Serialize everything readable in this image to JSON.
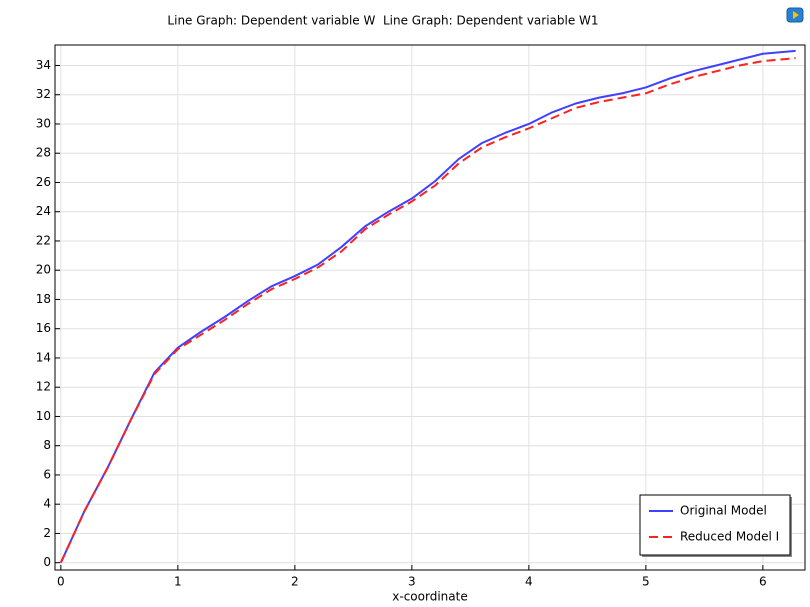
{
  "chart_data": {
    "type": "line",
    "title": "Line Graph: Dependent variable W  Line Graph: Dependent variable W1",
    "x_label": "x-coordinate",
    "x": [
      0,
      0.2,
      0.4,
      0.6,
      0.8,
      1.0,
      1.2,
      1.4,
      1.6,
      1.8,
      2.0,
      2.2,
      2.4,
      2.6,
      2.8,
      3.0,
      3.2,
      3.4,
      3.6,
      3.8,
      4.0,
      4.2,
      4.4,
      4.6,
      4.8,
      5.0,
      5.2,
      5.4,
      5.6,
      5.8,
      6.0,
      6.28
    ],
    "series": [
      {
        "name": "Original Model",
        "color": "#4040ff",
        "dash": false,
        "values": [
          0,
          3.5,
          6.5,
          9.8,
          13.0,
          14.7,
          15.8,
          16.8,
          17.9,
          18.9,
          19.6,
          20.4,
          21.6,
          23.0,
          24.0,
          24.9,
          26.1,
          27.6,
          28.7,
          29.4,
          30.0,
          30.8,
          31.4,
          31.8,
          32.1,
          32.5,
          33.1,
          33.6,
          34.0,
          34.4,
          34.8,
          35.0
        ]
      },
      {
        "name": "Reduced Model I",
        "color": "#ff2020",
        "dash": true,
        "values": [
          0,
          3.5,
          6.5,
          9.8,
          12.9,
          14.6,
          15.6,
          16.6,
          17.7,
          18.7,
          19.4,
          20.2,
          21.3,
          22.8,
          23.8,
          24.7,
          25.8,
          27.3,
          28.4,
          29.1,
          29.7,
          30.4,
          31.1,
          31.5,
          31.8,
          32.1,
          32.7,
          33.2,
          33.6,
          34.0,
          34.3,
          34.5
        ]
      }
    ],
    "xlim": [
      -0.05,
      6.36
    ],
    "ylim": [
      -0.5,
      35.4
    ],
    "xticks": [
      0,
      1,
      2,
      3,
      4,
      5,
      6
    ],
    "yticks": [
      0,
      2,
      4,
      6,
      8,
      10,
      12,
      14,
      16,
      18,
      20,
      22,
      24,
      26,
      28,
      30,
      32,
      34
    ],
    "grid": true,
    "legend": "lower right"
  }
}
